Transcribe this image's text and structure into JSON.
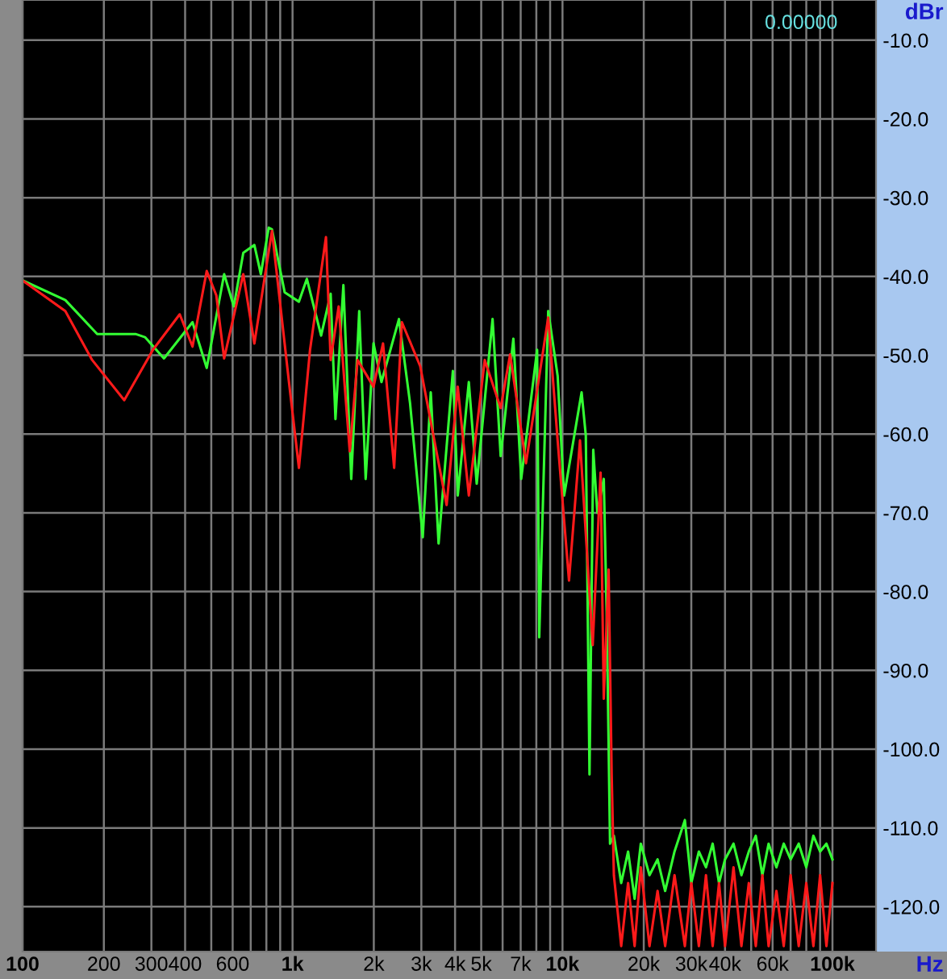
{
  "chart_data": {
    "type": "line",
    "xlabel": "Hz",
    "ylabel": "dBr",
    "log": "x",
    "grid": true,
    "annotations": [
      "0.00000"
    ],
    "xlim": [
      100,
      145000
    ],
    "ylim": [
      -125.7,
      -4.9
    ],
    "xticks": [
      100,
      200,
      300,
      400,
      {
        "value": 500,
        "label": null
      },
      600,
      {
        "value": 700,
        "label": null
      },
      {
        "value": 800,
        "label": null
      },
      {
        "value": 900,
        "label": null
      },
      {
        "value": 1000,
        "label": "1k"
      },
      {
        "value": 2000,
        "label": "2k"
      },
      {
        "value": 3000,
        "label": "3k"
      },
      {
        "value": 4000,
        "label": "4k"
      },
      {
        "value": 5000,
        "label": "5k"
      },
      {
        "value": 6000,
        "label": null
      },
      {
        "value": 7000,
        "label": "7k"
      },
      {
        "value": 8000,
        "label": null
      },
      {
        "value": 9000,
        "label": null
      },
      {
        "value": 10000,
        "label": "10k"
      },
      {
        "value": 20000,
        "label": "20k"
      },
      {
        "value": 30000,
        "label": "30k"
      },
      {
        "value": 40000,
        "label": "40k"
      },
      {
        "value": 50000,
        "label": null
      },
      {
        "value": 60000,
        "label": "60k"
      },
      {
        "value": 70000,
        "label": null
      },
      {
        "value": 80000,
        "label": null
      },
      {
        "value": 90000,
        "label": null
      },
      {
        "value": 100000,
        "label": "100k"
      }
    ],
    "yticks": [
      {
        "value": -10,
        "label": "-10.0"
      },
      {
        "value": -20,
        "label": "-20.0"
      },
      {
        "value": -30,
        "label": "-30.0"
      },
      {
        "value": -40,
        "label": "-40.0"
      },
      {
        "value": -50,
        "label": "-50.0"
      },
      {
        "value": -60,
        "label": "-60.0"
      },
      {
        "value": -70,
        "label": "-70.0"
      },
      {
        "value": -80,
        "label": "-80.0"
      },
      {
        "value": -90,
        "label": "-90.0"
      },
      {
        "value": -100,
        "label": "-100.0"
      },
      {
        "value": -110,
        "label": "-110.0"
      },
      {
        "value": -120,
        "label": "-120.0"
      }
    ],
    "series": [
      {
        "color": "#33ff33",
        "x": [
          100,
          144,
          189,
          262,
          284,
          334,
          426,
          481,
          558,
          606,
          657,
          722,
          763,
          816,
          839,
          935,
          1056,
          1130,
          1276,
          1384,
          1442,
          1543,
          1650,
          1766,
          1866,
          1995,
          2135,
          2479,
          2725,
          3036,
          3251,
          3475,
          3926,
          4093,
          4498,
          4811,
          5508,
          5902,
          6577,
          7031,
          8054,
          8200,
          8853,
          9594,
          10140,
          11770,
          12200,
          12590,
          13000,
          13460,
          14220,
          14600,
          15000,
          15500,
          16500,
          17500,
          18500,
          19500,
          21000,
          22500,
          24000,
          26000,
          28400,
          30000,
          32000,
          34000,
          36000,
          38000,
          40000,
          43000,
          46000,
          49000,
          52000,
          55000,
          58000,
          62000,
          66000,
          70000,
          75000,
          80000,
          85000,
          90000,
          95000,
          100000
        ],
        "values": [
          -40.5,
          -43.0,
          -47.3,
          -47.3,
          -47.7,
          -50.4,
          -45.8,
          -51.6,
          -39.7,
          -43.8,
          -37.0,
          -36.0,
          -39.7,
          -33.8,
          -34.0,
          -42.0,
          -43.2,
          -40.3,
          -47.5,
          -42.2,
          -58.1,
          -41.1,
          -65.7,
          -44.4,
          -65.7,
          -48.5,
          -53.4,
          -45.4,
          -56.1,
          -73.1,
          -54.7,
          -73.9,
          -52.0,
          -67.8,
          -53.4,
          -66.3,
          -45.4,
          -62.8,
          -47.9,
          -65.7,
          -49.3,
          -85.8,
          -44.4,
          -52.6,
          -67.8,
          -54.7,
          -60.2,
          -103.2,
          -62.0,
          -70.0,
          -65.7,
          -84.0,
          -112,
          -111,
          -117,
          -113,
          -119,
          -112,
          -116,
          -114,
          -118,
          -113,
          -109,
          -117,
          -113,
          -115,
          -112,
          -117,
          -114,
          -112,
          -116,
          -113,
          -111,
          -116,
          -112,
          -115,
          -112,
          -114,
          -112,
          -115,
          -111,
          -113,
          -112,
          -114
        ]
      },
      {
        "color": "#ff1a1a",
        "x": [
          100,
          144,
          181,
          238,
          304,
          382,
          426,
          481,
          522,
          558,
          657,
          722,
          839,
          970,
          1056,
          1161,
          1330,
          1384,
          1482,
          1629,
          1742,
          1995,
          2164,
          2379,
          2541,
          2972,
          3722,
          4093,
          4498,
          5152,
          5902,
          6397,
          7325,
          8853,
          9594,
          10570,
          11610,
          12940,
          13840,
          14220,
          14820,
          15210,
          15500,
          16500,
          17500,
          18500,
          19500,
          21000,
          22500,
          24000,
          26000,
          28400,
          30000,
          32000,
          34000,
          36000,
          38000,
          40000,
          43000,
          46000,
          49000,
          52000,
          55000,
          58000,
          62000,
          66000,
          70000,
          75000,
          80000,
          85000,
          90000,
          95000,
          100000
        ],
        "values": [
          -40.5,
          -44.4,
          -50.6,
          -55.7,
          -49.3,
          -44.8,
          -48.9,
          -39.3,
          -42.4,
          -50.4,
          -39.7,
          -48.5,
          -34.2,
          -53.4,
          -64.3,
          -49.3,
          -35.0,
          -50.6,
          -43.8,
          -62.2,
          -50.6,
          -54.0,
          -48.5,
          -64.3,
          -45.8,
          -51.4,
          -69.0,
          -54.0,
          -67.8,
          -50.6,
          -56.7,
          -49.9,
          -63.7,
          -45.2,
          -60.8,
          -78.6,
          -60.8,
          -86.8,
          -64.9,
          -93.6,
          -77.2,
          -103.2,
          -116,
          -125,
          -117,
          -125,
          -115,
          -125,
          -118,
          -125,
          -116,
          -125,
          -117,
          -125,
          -116,
          -125,
          -117,
          -125,
          -115,
          -125,
          -117,
          -125,
          -116,
          -125,
          -118,
          -125,
          -116,
          -125,
          -117,
          -125,
          -116,
          -125,
          -117
        ]
      }
    ]
  }
}
